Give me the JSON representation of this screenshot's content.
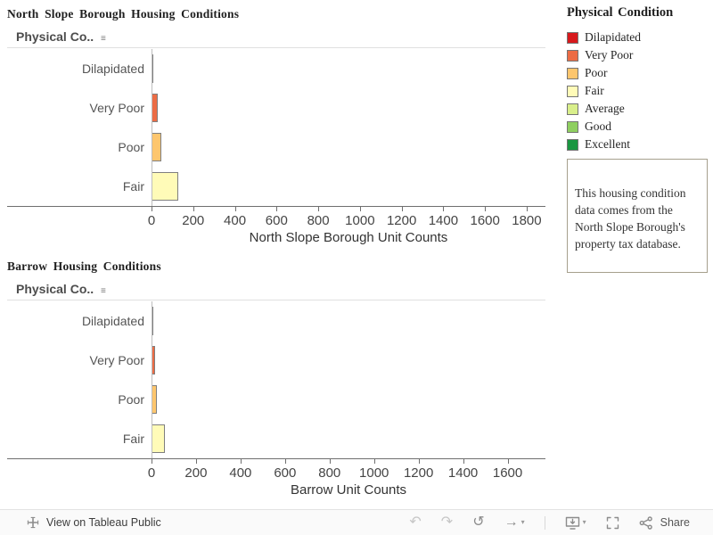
{
  "page": {
    "charts": [
      {
        "title": "North Slope Borough Housing Conditions",
        "column_header": "Physical Co..",
        "xlabel": "North Slope Borough Unit Counts"
      },
      {
        "title": "Barrow Housing Conditions",
        "column_header": "Physical Co..",
        "xlabel": "Barrow Unit Counts"
      }
    ],
    "legend": {
      "title": "Physical Condition",
      "items": [
        {
          "label": "Dilapidated",
          "color": "#d7191c"
        },
        {
          "label": "Very Poor",
          "color": "#ec6c45"
        },
        {
          "label": "Poor",
          "color": "#fdc66e"
        },
        {
          "label": "Fair",
          "color": "#fffbb8"
        },
        {
          "label": "Average",
          "color": "#d9ef8b"
        },
        {
          "label": "Good",
          "color": "#8fcf60"
        },
        {
          "label": "Excellent",
          "color": "#1a9641"
        }
      ]
    },
    "note": "This housing condition data comes from the North Slope Borough's property tax database.",
    "toolbar": {
      "view_on_label": "View on Tableau Public",
      "share_label": "Share",
      "icons": {
        "undo": "↶",
        "redo": "↷",
        "reset": "↺",
        "refresh": "→",
        "caret": "▾",
        "sort": "≡"
      }
    }
  },
  "chart_data": [
    {
      "type": "bar",
      "orientation": "horizontal",
      "title": "North Slope Borough Housing Conditions",
      "ylabel": "Physical Condition",
      "xlabel": "North Slope Borough Unit Counts",
      "categories": [
        "Dilapidated",
        "Very Poor",
        "Poor",
        "Fair"
      ],
      "values": [
        8,
        30,
        45,
        130
      ],
      "colors": [
        "#d7191c",
        "#ec6c45",
        "#fdc66e",
        "#fffbb8"
      ],
      "xlim": [
        0,
        1890
      ],
      "xticks": [
        0,
        200,
        400,
        600,
        800,
        1000,
        1200,
        1400,
        1600,
        1800
      ],
      "grid": false,
      "legend_position": "right"
    },
    {
      "type": "bar",
      "orientation": "horizontal",
      "title": "Barrow Housing Conditions",
      "ylabel": "Physical Condition",
      "xlabel": "Barrow Unit Counts",
      "categories": [
        "Dilapidated",
        "Very Poor",
        "Poor",
        "Fair"
      ],
      "values": [
        5,
        15,
        25,
        60
      ],
      "colors": [
        "#d7191c",
        "#ec6c45",
        "#fdc66e",
        "#fffbb8"
      ],
      "xlim": [
        0,
        1770
      ],
      "xticks": [
        0,
        200,
        400,
        600,
        800,
        1000,
        1200,
        1400,
        1600
      ],
      "grid": false,
      "legend_position": "right"
    }
  ]
}
